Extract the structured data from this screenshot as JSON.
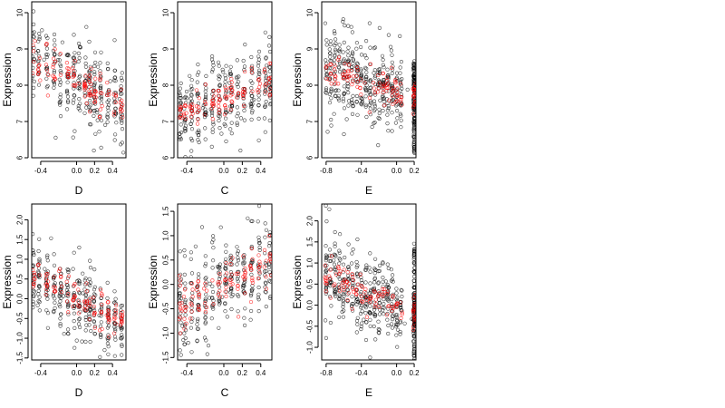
{
  "chart_data": [
    {
      "type": "scatter",
      "xlabel": "D",
      "ylabel": "Expression",
      "xlim": [
        -0.5,
        0.55
      ],
      "ylim": [
        6,
        10.3
      ],
      "xticks": [
        -0.4,
        0.0,
        0.2,
        0.4
      ],
      "xtick_labels": [
        "-0.4",
        "0.0",
        "0.2",
        "0.4"
      ],
      "yticks": [
        6,
        7,
        8,
        9,
        10
      ],
      "ytick_labels": [
        "6",
        "7",
        "8",
        "9",
        "10"
      ],
      "series_colors": [
        "#000000",
        "#ff0000"
      ],
      "trend": [
        [
          -0.5,
          8.8
        ],
        [
          0.5,
          7.4
        ]
      ],
      "spread": 0.6,
      "x_clusters": [
        -0.48,
        -0.42,
        -0.33,
        -0.25,
        -0.18,
        -0.1,
        -0.03,
        0.03,
        0.1,
        0.15,
        0.2,
        0.27,
        0.35,
        0.43,
        0.5
      ]
    },
    {
      "type": "scatter",
      "xlabel": "C",
      "ylabel": "Expression",
      "xlim": [
        -0.5,
        0.52
      ],
      "ylim": [
        6,
        10.3
      ],
      "xticks": [
        -0.4,
        0.0,
        0.2,
        0.4
      ],
      "xtick_labels": [
        "-0.4",
        "0.0",
        "0.2",
        "0.4"
      ],
      "yticks": [
        6,
        7,
        8,
        9,
        10
      ],
      "ytick_labels": [
        "6",
        "7",
        "8",
        "9",
        "10"
      ],
      "series_colors": [
        "#000000",
        "#ff0000"
      ],
      "trend": [
        [
          -0.5,
          7.2
        ],
        [
          0.5,
          8.1
        ]
      ],
      "spread": 0.55,
      "x_clusters": [
        -0.47,
        -0.42,
        -0.35,
        -0.28,
        -0.2,
        -0.12,
        -0.05,
        0.02,
        0.08,
        0.15,
        0.22,
        0.3,
        0.38,
        0.45,
        0.5
      ]
    },
    {
      "type": "scatter",
      "xlabel": "E",
      "ylabel": "Expression",
      "xlim": [
        -0.85,
        0.22
      ],
      "ylim": [
        6,
        10.3
      ],
      "xticks": [
        -0.8,
        -0.4,
        0.0,
        0.2
      ],
      "xtick_labels": [
        "-0.8",
        "-0.4",
        "0.0",
        "0.2"
      ],
      "yticks": [
        6,
        7,
        8,
        9,
        10
      ],
      "ytick_labels": [
        "6",
        "7",
        "8",
        "9",
        "10"
      ],
      "series_colors": [
        "#000000",
        "#ff0000"
      ],
      "trend": [
        [
          -0.8,
          8.5
        ],
        [
          0.2,
          7.6
        ]
      ],
      "spread": 0.55,
      "x_clusters": [
        -0.8,
        -0.75,
        -0.7,
        -0.65,
        -0.6,
        -0.55,
        -0.5,
        -0.45,
        -0.4,
        -0.35,
        -0.3,
        -0.25,
        -0.2,
        -0.15,
        -0.1,
        -0.05,
        0.0,
        0.05,
        0.2,
        0.2,
        0.2
      ],
      "x_concentration": {
        "x": 0.2,
        "range": [
          6.1,
          8.7
        ]
      }
    },
    {
      "type": "scatter",
      "xlabel": "D",
      "ylabel": "Expression",
      "xlim": [
        -0.5,
        0.55
      ],
      "ylim": [
        -1.55,
        2.4
      ],
      "xticks": [
        -0.4,
        0.0,
        0.2,
        0.4
      ],
      "xtick_labels": [
        "-0.4",
        "0.0",
        "0.2",
        "0.4"
      ],
      "yticks": [
        -1.5,
        -1.0,
        -0.5,
        0.0,
        0.5,
        1.0,
        1.5,
        2.0
      ],
      "ytick_labels": [
        "-1.5",
        "-1.0",
        "-0.5",
        "0.0",
        "0.5",
        "1.0",
        "1.5",
        "2.0"
      ],
      "series_colors": [
        "#000000",
        "#ff0000"
      ],
      "trend": [
        [
          -0.5,
          0.55
        ],
        [
          0.55,
          -0.6
        ]
      ],
      "spread": 0.5,
      "x_clusters": [
        -0.48,
        -0.42,
        -0.33,
        -0.25,
        -0.18,
        -0.1,
        -0.03,
        0.03,
        0.1,
        0.15,
        0.2,
        0.27,
        0.35,
        0.43,
        0.5
      ]
    },
    {
      "type": "scatter",
      "xlabel": "C",
      "ylabel": "Expression",
      "xlim": [
        -0.5,
        0.52
      ],
      "ylim": [
        -1.55,
        1.65
      ],
      "xticks": [
        -0.4,
        0.0,
        0.2,
        0.4
      ],
      "xtick_labels": [
        "-0.4",
        "0.0",
        "0.2",
        "0.4"
      ],
      "yticks": [
        -1.5,
        -1.0,
        -0.5,
        0.0,
        0.5,
        1.0,
        1.5
      ],
      "ytick_labels": [
        "-1.5",
        "-1.0",
        "-0.5",
        "0.0",
        "0.5",
        "1.0",
        "1.5"
      ],
      "series_colors": [
        "#000000",
        "#ff0000"
      ],
      "trend": [
        [
          -0.5,
          -0.5
        ],
        [
          0.5,
          0.5
        ]
      ],
      "spread": 0.5,
      "x_clusters": [
        -0.47,
        -0.42,
        -0.35,
        -0.28,
        -0.2,
        -0.12,
        -0.05,
        0.02,
        0.08,
        0.15,
        0.22,
        0.3,
        0.38,
        0.45,
        0.5
      ]
    },
    {
      "type": "scatter",
      "xlabel": "E",
      "ylabel": "Expression",
      "xlim": [
        -0.85,
        0.22
      ],
      "ylim": [
        -1.3,
        2.4
      ],
      "xticks": [
        -0.8,
        -0.4,
        0.0,
        0.2
      ],
      "xtick_labels": [
        "-0.8",
        "-0.4",
        "0.0",
        "0.2"
      ],
      "yticks": [
        -1.0,
        -0.5,
        0.0,
        0.5,
        1.0,
        1.5,
        2.0
      ],
      "ytick_labels": [
        "-1.0",
        "-0.5",
        "0.0",
        "0.5",
        "1.0",
        "1.5",
        "2.0"
      ],
      "series_colors": [
        "#000000",
        "#ff0000"
      ],
      "trend": [
        [
          -0.8,
          0.65
        ],
        [
          0.2,
          -0.2
        ]
      ],
      "spread": 0.45,
      "x_clusters": [
        -0.8,
        -0.75,
        -0.7,
        -0.65,
        -0.6,
        -0.55,
        -0.5,
        -0.45,
        -0.4,
        -0.35,
        -0.3,
        -0.25,
        -0.2,
        -0.15,
        -0.1,
        -0.05,
        0.0,
        0.05,
        0.2,
        0.2,
        0.2
      ],
      "x_concentration": {
        "x": 0.2,
        "range": [
          -1.25,
          1.6
        ]
      }
    }
  ]
}
